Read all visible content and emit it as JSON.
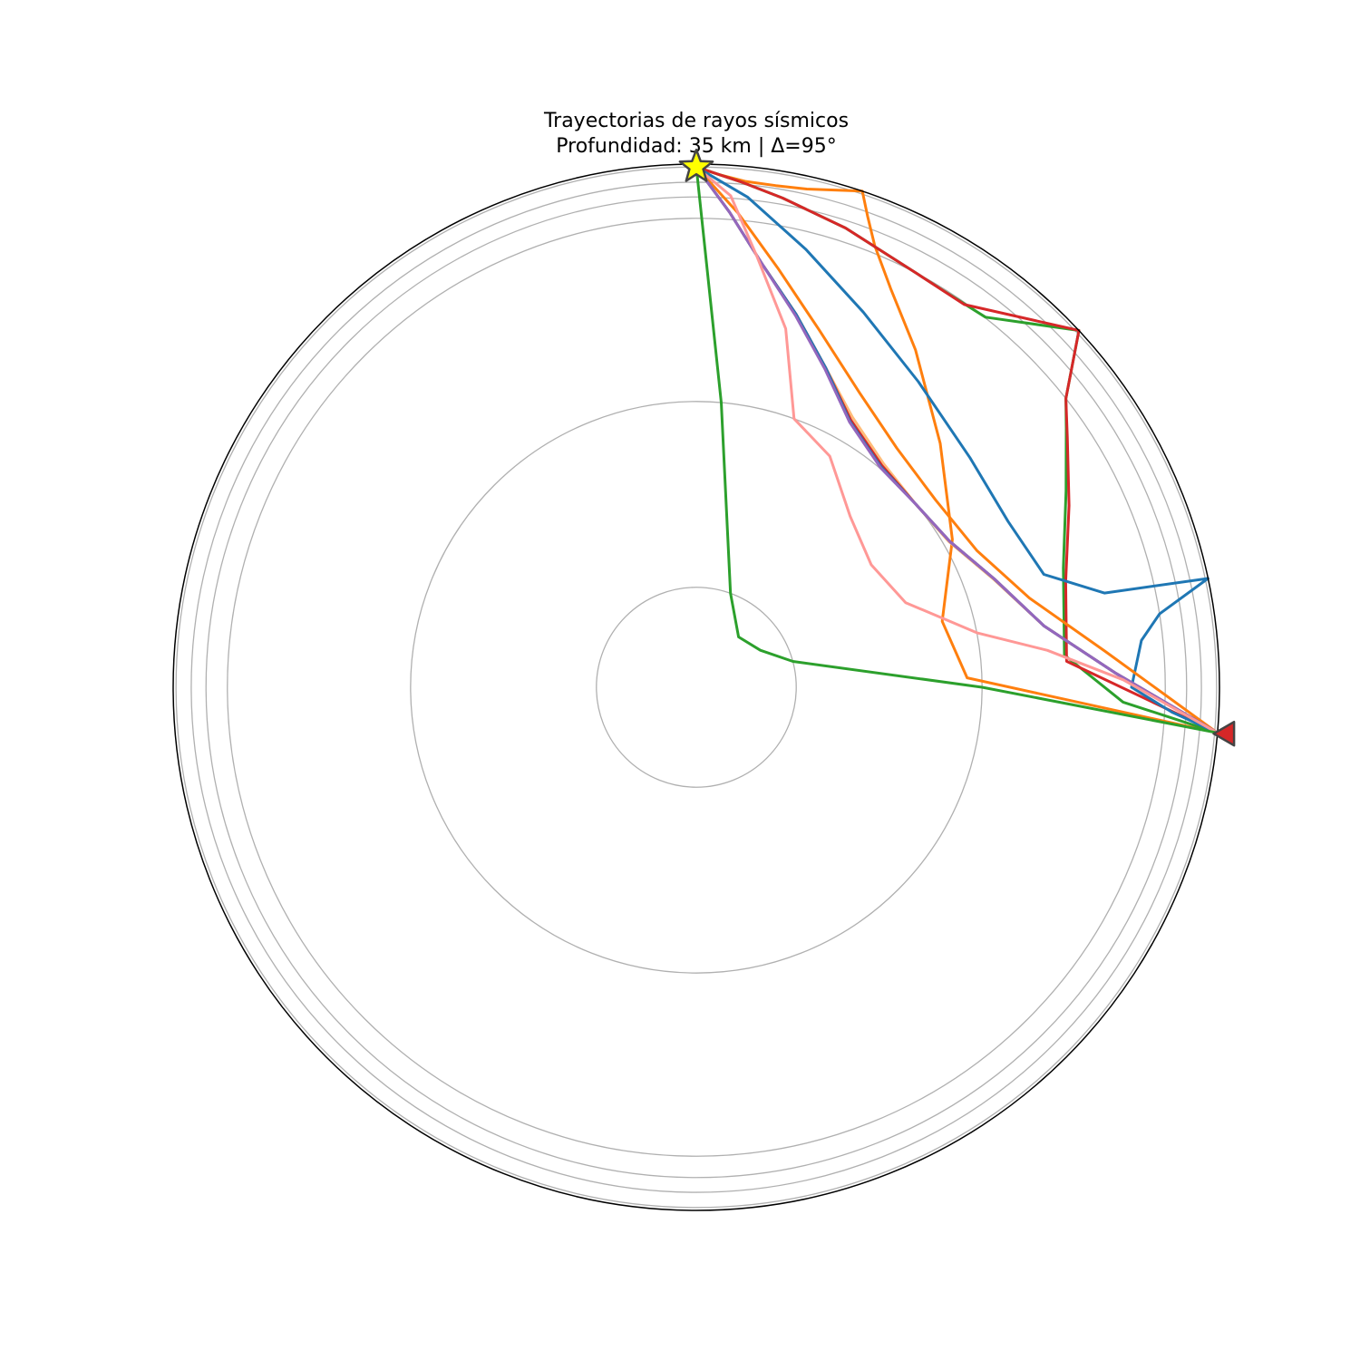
{
  "chart_data": {
    "type": "polar ray paths",
    "title": "Trayectorias de rayos sísmicos",
    "subtitle": "Profundidad: 35 km | Δ=95°",
    "axis_color": "#000000",
    "grid_color": "#b0b0b0",
    "earth_radius_km": 6371,
    "discontinuity_radii_km": [
      6336,
      6151,
      5971,
      5711,
      3480,
      1217
    ],
    "source": {
      "distance_deg": 0,
      "depth_km": 35,
      "marker": "star-icon",
      "color": "#ffff00"
    },
    "receiver": {
      "distance_deg": 95,
      "marker": "triangle-icon",
      "color": "#d62728"
    },
    "series": [
      {
        "color": "#ff7f0e",
        "points": [
          [
            0,
            6336
          ],
          [
            2.5,
            6250
          ],
          [
            5.5,
            6190
          ],
          [
            9,
            6186
          ],
          [
            12.5,
            6215
          ],
          [
            18.5,
            6371
          ],
          [
            20,
            6100
          ],
          [
            22,
            5800
          ],
          [
            26,
            5400
          ],
          [
            33,
            4900
          ],
          [
            45,
            4200
          ],
          [
            60,
            3600
          ],
          [
            75,
            3100
          ],
          [
            88,
            3300
          ],
          [
            95,
            6371
          ]
        ]
      },
      {
        "color": "#2ca02c",
        "points": [
          [
            0,
            6336
          ],
          [
            5,
            6180
          ],
          [
            10,
            6050
          ],
          [
            18,
            5880
          ],
          [
            28,
            5710
          ],
          [
            32,
            5690
          ],
          [
            38,
            5720
          ],
          [
            47,
            6371
          ],
          [
            52,
            5711
          ],
          [
            55,
            5500
          ],
          [
            62,
            5100
          ],
          [
            72,
            4700
          ],
          [
            85,
            4500
          ],
          [
            92,
            5200
          ],
          [
            95,
            6371
          ]
        ]
      },
      {
        "color": "#d62728",
        "points": [
          [
            0,
            6336
          ],
          [
            5,
            6180
          ],
          [
            10,
            6050
          ],
          [
            18,
            5880
          ],
          [
            28,
            5710
          ],
          [
            35,
            5690
          ],
          [
            47,
            6371
          ],
          [
            52,
            5711
          ],
          [
            56,
            5450
          ],
          [
            64,
            5050
          ],
          [
            74,
            4680
          ],
          [
            86,
            4520
          ],
          [
            95,
            6371
          ]
        ]
      },
      {
        "color": "#1f77b4",
        "points": [
          [
            0,
            6336
          ],
          [
            6,
            6000
          ],
          [
            14,
            5500
          ],
          [
            24,
            5000
          ],
          [
            36,
            4600
          ],
          [
            50,
            4350
          ],
          [
            62,
            4300
          ],
          [
            72,
            4450
          ],
          [
            77,
            5100
          ],
          [
            78,
            6371
          ],
          [
            81,
            5711
          ],
          [
            84,
            5450
          ],
          [
            90,
            5300
          ],
          [
            93,
            5800
          ],
          [
            95,
            6371
          ]
        ]
      },
      {
        "color": "#ff7f0e",
        "points": [
          [
            0,
            6336
          ],
          [
            5,
            5800
          ],
          [
            11,
            5200
          ],
          [
            19,
            4600
          ],
          [
            29,
            4100
          ],
          [
            40,
            3800
          ],
          [
            52,
            3700
          ],
          [
            64,
            3800
          ],
          [
            75,
            4200
          ],
          [
            85,
            5000
          ],
          [
            95,
            6371
          ]
        ]
      },
      {
        "color": "#ffbb78",
        "points": [
          [
            0,
            6336
          ],
          [
            4,
            5800
          ],
          [
            9,
            5200
          ],
          [
            15,
            4700
          ],
          [
            22,
            4200
          ],
          [
            30,
            3800
          ],
          [
            40,
            3550
          ],
          [
            50,
            3480
          ],
          [
            60,
            3550
          ],
          [
            70,
            3850
          ],
          [
            80,
            4300
          ],
          [
            88,
            5100
          ],
          [
            95,
            6371
          ]
        ]
      },
      {
        "color": "#d62728",
        "points": [
          [
            0,
            6336
          ],
          [
            4,
            5800
          ],
          [
            9,
            5200
          ],
          [
            15,
            4700
          ],
          [
            22,
            4200
          ],
          [
            30,
            3760
          ],
          [
            40,
            3520
          ],
          [
            50,
            3480
          ],
          [
            60,
            3560
          ],
          [
            70,
            3860
          ],
          [
            80,
            4300
          ],
          [
            88,
            5100
          ],
          [
            95,
            6371
          ]
        ]
      },
      {
        "color": "#1f77b4",
        "points": [
          [
            0,
            6336
          ],
          [
            4,
            5800
          ],
          [
            9,
            5200
          ],
          [
            15,
            4700
          ],
          [
            22,
            4200
          ],
          [
            30,
            3740
          ],
          [
            40,
            3500
          ],
          [
            50,
            3480
          ],
          [
            60,
            3560
          ],
          [
            70,
            3860
          ],
          [
            80,
            4300
          ],
          [
            88,
            5100
          ],
          [
            95,
            6371
          ]
        ]
      },
      {
        "color": "#9467bd",
        "points": [
          [
            0,
            6336
          ],
          [
            4,
            5800
          ],
          [
            9,
            5200
          ],
          [
            15,
            4680
          ],
          [
            22,
            4180
          ],
          [
            30,
            3730
          ],
          [
            40,
            3490
          ],
          [
            50,
            3480
          ],
          [
            60,
            3560
          ],
          [
            70,
            3860
          ],
          [
            80,
            4300
          ],
          [
            88,
            5100
          ],
          [
            95,
            6371
          ]
        ]
      },
      {
        "color": "#ff9896",
        "points": [
          [
            0,
            6336
          ],
          [
            4,
            6000
          ],
          [
            8,
            5300
          ],
          [
            14,
            4500
          ],
          [
            20,
            3480
          ],
          [
            30,
            3250
          ],
          [
            42,
            2800
          ],
          [
            55,
            2600
          ],
          [
            68,
            2750
          ],
          [
            79,
            3480
          ],
          [
            84,
            4300
          ],
          [
            89,
            5200
          ],
          [
            95,
            6371
          ]
        ]
      },
      {
        "color": "#2ca02c",
        "points": [
          [
            0,
            6336
          ],
          [
            5,
            3480
          ],
          [
            20,
            1217
          ],
          [
            40,
            800
          ],
          [
            60,
            900
          ],
          [
            75,
            1217
          ],
          [
            90,
            3480
          ],
          [
            95,
            6371
          ]
        ]
      }
    ]
  }
}
